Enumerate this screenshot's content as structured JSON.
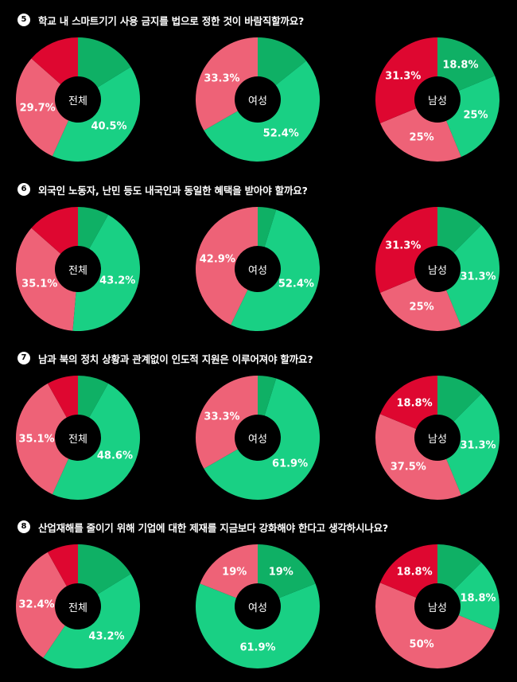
{
  "colors": {
    "background": "#000000",
    "dark_green": "#0fb065",
    "green": "#19d084",
    "pink": "#ee6277",
    "red": "#de0730"
  },
  "questions": [
    {
      "number": "5",
      "text": "학교 내 스마트기기 사용 금지를 법으로 정한 것이 바람직할까요?",
      "charts": [
        {
          "center": "전체",
          "labels": [
            "",
            "40.5%",
            "29.7%",
            ""
          ]
        },
        {
          "center": "여성",
          "labels": [
            "",
            "52.4%",
            "33.3%",
            ""
          ]
        },
        {
          "center": "남성",
          "labels": [
            "18.8%",
            "25%",
            "25%",
            "31.3%"
          ]
        }
      ]
    },
    {
      "number": "6",
      "text": "외국인 노동자, 난민 등도 내국인과 동일한 혜택을 받아야 할까요?",
      "charts": [
        {
          "center": "전체",
          "labels": [
            "",
            "43.2%",
            "35.1%",
            ""
          ]
        },
        {
          "center": "여성",
          "labels": [
            "",
            "52.4%",
            "42.9%",
            ""
          ]
        },
        {
          "center": "남성",
          "labels": [
            "",
            "31.3%",
            "25%",
            "31.3%"
          ]
        }
      ]
    },
    {
      "number": "7",
      "text": "남과 북의 정치 상황과 관계없이 인도적 지원은 이루어져야 할까요?",
      "charts": [
        {
          "center": "전체",
          "labels": [
            "",
            "48.6%",
            "35.1%",
            ""
          ]
        },
        {
          "center": "여성",
          "labels": [
            "",
            "61.9%",
            "33.3%",
            ""
          ]
        },
        {
          "center": "남성",
          "labels": [
            "",
            "31.3%",
            "37.5%",
            "18.8%"
          ]
        }
      ]
    },
    {
      "number": "8",
      "text": "산업재해를 줄이기 위해 기업에 대한 제재를 지금보다 강화해야 한다고 생각하시나요?",
      "charts": [
        {
          "center": "전체",
          "labels": [
            "",
            "43.2%",
            "32.4%",
            ""
          ]
        },
        {
          "center": "여성",
          "labels": [
            "19%",
            "61.9%",
            "19%",
            ""
          ]
        },
        {
          "center": "남성",
          "labels": [
            "",
            "18.8%",
            "50%",
            "18.8%"
          ]
        }
      ]
    }
  ],
  "chart_data": [
    {
      "type": "pie",
      "question": "5",
      "group": "전체",
      "categories": [
        "dark green",
        "green",
        "pink",
        "red"
      ],
      "values": [
        16.2,
        40.5,
        29.7,
        13.5
      ]
    },
    {
      "type": "pie",
      "question": "5",
      "group": "여성",
      "categories": [
        "dark green",
        "green",
        "pink",
        "red"
      ],
      "values": [
        14.3,
        52.4,
        33.3,
        0
      ]
    },
    {
      "type": "pie",
      "question": "5",
      "group": "남성",
      "categories": [
        "dark green",
        "green",
        "pink",
        "red"
      ],
      "values": [
        18.8,
        25,
        25,
        31.3
      ]
    },
    {
      "type": "pie",
      "question": "6",
      "group": "전체",
      "categories": [
        "dark green",
        "green",
        "pink",
        "red"
      ],
      "values": [
        8.1,
        43.2,
        35.1,
        13.5
      ]
    },
    {
      "type": "pie",
      "question": "6",
      "group": "여성",
      "categories": [
        "dark green",
        "green",
        "pink",
        "red"
      ],
      "values": [
        4.8,
        52.4,
        42.9,
        0
      ]
    },
    {
      "type": "pie",
      "question": "6",
      "group": "남성",
      "categories": [
        "dark green",
        "green",
        "pink",
        "red"
      ],
      "values": [
        12.5,
        31.3,
        25,
        31.3
      ]
    },
    {
      "type": "pie",
      "question": "7",
      "group": "전체",
      "categories": [
        "dark green",
        "green",
        "pink",
        "red"
      ],
      "values": [
        8.1,
        48.6,
        35.1,
        8.1
      ]
    },
    {
      "type": "pie",
      "question": "7",
      "group": "여성",
      "categories": [
        "dark green",
        "green",
        "pink",
        "red"
      ],
      "values": [
        4.8,
        61.9,
        33.3,
        0
      ]
    },
    {
      "type": "pie",
      "question": "7",
      "group": "남성",
      "categories": [
        "dark green",
        "green",
        "pink",
        "red"
      ],
      "values": [
        12.5,
        31.3,
        37.5,
        18.8
      ]
    },
    {
      "type": "pie",
      "question": "8",
      "group": "전체",
      "categories": [
        "dark green",
        "green",
        "pink",
        "red"
      ],
      "values": [
        16.2,
        43.2,
        32.4,
        8.1
      ]
    },
    {
      "type": "pie",
      "question": "8",
      "group": "여성",
      "categories": [
        "dark green",
        "green",
        "pink",
        "red"
      ],
      "values": [
        19,
        61.9,
        19,
        0
      ]
    },
    {
      "type": "pie",
      "question": "8",
      "group": "남성",
      "categories": [
        "dark green",
        "green",
        "pink",
        "red"
      ],
      "values": [
        12.5,
        18.8,
        50,
        18.8
      ]
    }
  ]
}
